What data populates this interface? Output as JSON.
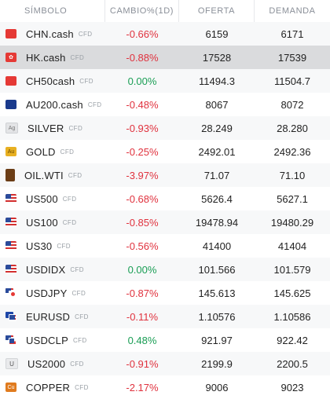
{
  "header": {
    "symbol": "SÍMBOLO",
    "change": "CAMBIO%(1D)",
    "bid": "OFERTA",
    "ask": "DEMANDA"
  },
  "colors": {
    "negative": "#e0323e",
    "positive": "#1a9e55",
    "selected_row": "#dadbdd"
  },
  "rows": [
    {
      "symbol": "CHN.cash",
      "tag": "CFD",
      "change": "-0.66%",
      "dir": "neg",
      "bid": "6159",
      "ask": "6171",
      "icon": "china-flag-icon"
    },
    {
      "symbol": "HK.cash",
      "tag": "CFD",
      "change": "-0.88%",
      "dir": "neg",
      "bid": "17528",
      "ask": "17539",
      "icon": "hong-kong-flag-icon",
      "selected": true
    },
    {
      "symbol": "CH50cash",
      "tag": "CFD",
      "change": "0.00%",
      "dir": "pos",
      "bid": "11494.3",
      "ask": "11504.7",
      "icon": "china-flag-icon"
    },
    {
      "symbol": "AU200.cash",
      "tag": "CFD",
      "change": "-0.48%",
      "dir": "neg",
      "bid": "8067",
      "ask": "8072",
      "icon": "australia-flag-icon"
    },
    {
      "symbol": "SILVER",
      "tag": "CFD",
      "change": "-0.93%",
      "dir": "neg",
      "bid": "28.249",
      "ask": "28.280",
      "icon": "silver-icon"
    },
    {
      "symbol": "GOLD",
      "tag": "CFD",
      "change": "-0.25%",
      "dir": "neg",
      "bid": "2492.01",
      "ask": "2492.36",
      "icon": "gold-icon"
    },
    {
      "symbol": "OIL.WTI",
      "tag": "CFD",
      "change": "-3.97%",
      "dir": "neg",
      "bid": "71.07",
      "ask": "71.10",
      "icon": "oil-barrel-icon"
    },
    {
      "symbol": "US500",
      "tag": "CFD",
      "change": "-0.68%",
      "dir": "neg",
      "bid": "5626.4",
      "ask": "5627.1",
      "icon": "us-flag-icon"
    },
    {
      "symbol": "US100",
      "tag": "CFD",
      "change": "-0.85%",
      "dir": "neg",
      "bid": "19478.94",
      "ask": "19480.29",
      "icon": "us-flag-icon"
    },
    {
      "symbol": "US30",
      "tag": "CFD",
      "change": "-0.56%",
      "dir": "neg",
      "bid": "41400",
      "ask": "41404",
      "icon": "us-flag-icon"
    },
    {
      "symbol": "USDIDX",
      "tag": "CFD",
      "change": "0.00%",
      "dir": "pos",
      "bid": "101.566",
      "ask": "101.579",
      "icon": "us-flag-icon"
    },
    {
      "symbol": "USDJPY",
      "tag": "CFD",
      "change": "-0.87%",
      "dir": "neg",
      "bid": "145.613",
      "ask": "145.625",
      "icon": "us-jp-flags-icon"
    },
    {
      "symbol": "EURUSD",
      "tag": "CFD",
      "change": "-0.11%",
      "dir": "neg",
      "bid": "1.10576",
      "ask": "1.10586",
      "icon": "eu-us-flags-icon"
    },
    {
      "symbol": "USDCLP",
      "tag": "CFD",
      "change": "0.48%",
      "dir": "pos",
      "bid": "921.97",
      "ask": "922.42",
      "icon": "us-cl-flags-icon"
    },
    {
      "symbol": "US2000",
      "tag": "CFD",
      "change": "-0.91%",
      "dir": "neg",
      "bid": "2199.9",
      "ask": "2200.5",
      "icon": "u-icon"
    },
    {
      "symbol": "COPPER",
      "tag": "CFD",
      "change": "-2.17%",
      "dir": "neg",
      "bid": "9006",
      "ask": "9023",
      "icon": "copper-icon"
    }
  ]
}
